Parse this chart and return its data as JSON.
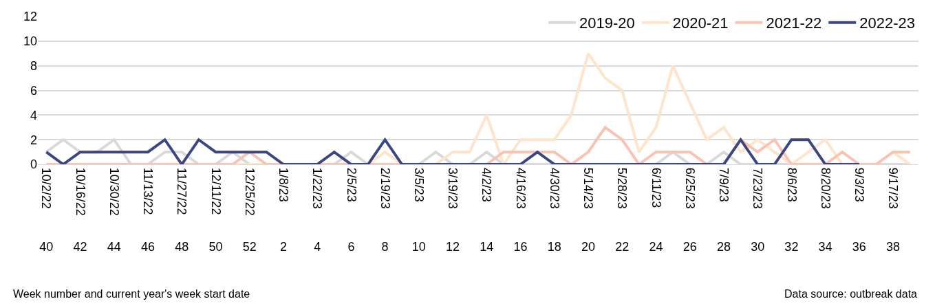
{
  "chart_data": {
    "type": "line",
    "x": [
      "2022-10-02",
      "2022-10-09",
      "2022-10-16",
      "2022-10-23",
      "2022-10-30",
      "2022-11-06",
      "2022-11-13",
      "2022-11-20",
      "2022-11-27",
      "2022-12-04",
      "2022-12-11",
      "2022-12-18",
      "2022-12-25",
      "2023-01-01",
      "2023-01-08",
      "2023-01-15",
      "2023-01-22",
      "2023-01-29",
      "2023-02-05",
      "2023-02-12",
      "2023-02-19",
      "2023-02-26",
      "2023-03-05",
      "2023-03-12",
      "2023-03-19",
      "2023-03-26",
      "2023-04-02",
      "2023-04-09",
      "2023-04-16",
      "2023-04-23",
      "2023-04-30",
      "2023-05-07",
      "2023-05-14",
      "2023-05-21",
      "2023-05-28",
      "2023-06-04",
      "2023-06-11",
      "2023-06-18",
      "2023-06-25",
      "2023-07-02",
      "2023-07-09",
      "2023-07-16",
      "2023-07-23",
      "2023-07-30",
      "2023-08-06",
      "2023-08-13",
      "2023-08-20",
      "2023-08-27",
      "2023-09-03",
      "2023-09-10",
      "2023-09-17",
      "2023-09-24"
    ],
    "xlim": [
      "2022-09-28T12:00",
      "2023-09-27T12:00"
    ],
    "xticks": [
      {
        "value": "2022-10-02",
        "label": "10/2/22"
      },
      {
        "value": "2022-10-16",
        "label": "10/16/22"
      },
      {
        "value": "2022-10-30",
        "label": "10/30/22"
      },
      {
        "value": "2022-11-13",
        "label": "11/13/22"
      },
      {
        "value": "2022-11-27",
        "label": "11/27/22"
      },
      {
        "value": "2022-12-11",
        "label": "12/11/22"
      },
      {
        "value": "2022-12-25",
        "label": "12/25/22"
      },
      {
        "value": "2023-01-08",
        "label": "1/8/23"
      },
      {
        "value": "2023-01-22",
        "label": "1/22/23"
      },
      {
        "value": "2023-02-05",
        "label": "2/5/23"
      },
      {
        "value": "2023-02-19",
        "label": "2/19/23"
      },
      {
        "value": "2023-03-05",
        "label": "3/5/23"
      },
      {
        "value": "2023-03-19",
        "label": "3/19/23"
      },
      {
        "value": "2023-04-02",
        "label": "4/2/23"
      },
      {
        "value": "2023-04-16",
        "label": "4/16/23"
      },
      {
        "value": "2023-04-30",
        "label": "4/30/23"
      },
      {
        "value": "2023-05-14",
        "label": "5/14/23"
      },
      {
        "value": "2023-05-28",
        "label": "5/28/23"
      },
      {
        "value": "2023-06-11",
        "label": "6/11/23"
      },
      {
        "value": "2023-06-25",
        "label": "6/25/23"
      },
      {
        "value": "2023-07-09",
        "label": "7/9/23"
      },
      {
        "value": "2023-07-23",
        "label": "7/23/23"
      },
      {
        "value": "2023-08-06",
        "label": "8/6/23"
      },
      {
        "value": "2023-08-20",
        "label": "8/20/23"
      },
      {
        "value": "2023-09-03",
        "label": "9/3/23"
      },
      {
        "value": "2023-09-17",
        "label": "9/17/23"
      }
    ],
    "x2lim": [
      "2022-09-28T12:00",
      "2023-09-27T12:00"
    ],
    "x2ticks": [
      {
        "value": "2022-10-02",
        "label": "40"
      },
      {
        "value": "2022-10-16",
        "label": "42"
      },
      {
        "value": "2022-10-30",
        "label": "44"
      },
      {
        "value": "2022-11-13",
        "label": "46"
      },
      {
        "value": "2022-11-27",
        "label": "48"
      },
      {
        "value": "2022-12-11",
        "label": "50"
      },
      {
        "value": "2022-12-25",
        "label": "52"
      },
      {
        "value": "2023-01-08",
        "label": "2"
      },
      {
        "value": "2023-01-22",
        "label": "4"
      },
      {
        "value": "2023-02-05",
        "label": "6"
      },
      {
        "value": "2023-02-19",
        "label": "8"
      },
      {
        "value": "2023-03-05",
        "label": "10"
      },
      {
        "value": "2023-03-19",
        "label": "12"
      },
      {
        "value": "2023-04-02",
        "label": "14"
      },
      {
        "value": "2023-04-16",
        "label": "16"
      },
      {
        "value": "2023-04-30",
        "label": "18"
      },
      {
        "value": "2023-05-14",
        "label": "20"
      },
      {
        "value": "2023-05-28",
        "label": "22"
      },
      {
        "value": "2023-06-11",
        "label": "24"
      },
      {
        "value": "2023-06-25",
        "label": "26"
      },
      {
        "value": "2023-07-09",
        "label": "28"
      },
      {
        "value": "2023-07-23",
        "label": "30"
      },
      {
        "value": "2023-08-06",
        "label": "32"
      },
      {
        "value": "2023-08-20",
        "label": "34"
      },
      {
        "value": "2023-09-03",
        "label": "36"
      },
      {
        "value": "2023-09-17",
        "label": "38"
      }
    ],
    "series": [
      {
        "name": "2019-20",
        "color": "#d9d9d9",
        "values": [
          1,
          2,
          1,
          1,
          2,
          0,
          0,
          1,
          1,
          0,
          0,
          1,
          0,
          0,
          0,
          0,
          0,
          0,
          1,
          0,
          0,
          0,
          0,
          1,
          0,
          0,
          1,
          0,
          0,
          0,
          0,
          0,
          0,
          0,
          0,
          0,
          0,
          1,
          0,
          0,
          1,
          0,
          0,
          0,
          0,
          0,
          0,
          0,
          0,
          0,
          0,
          0
        ]
      },
      {
        "name": "2020-21",
        "color": "#fde4ca",
        "values": [
          0,
          0,
          0,
          0,
          0,
          0,
          0,
          0,
          0,
          0,
          0,
          0,
          0,
          0,
          0,
          0,
          0,
          0,
          0,
          0,
          1,
          0,
          0,
          0,
          1,
          1,
          4,
          0,
          2,
          2,
          2,
          4,
          9,
          7,
          6,
          1,
          3,
          8,
          5,
          2,
          3,
          1,
          2,
          1,
          0,
          1,
          2,
          0,
          0,
          0,
          1,
          0
        ]
      },
      {
        "name": "2021-22",
        "color": "#f9c3b2",
        "values": [
          0,
          0,
          0,
          0,
          0,
          0,
          0,
          0,
          0,
          0,
          0,
          0,
          1,
          0,
          0,
          0,
          0,
          0,
          0,
          0,
          0,
          0,
          0,
          0,
          0,
          0,
          0,
          1,
          1,
          1,
          1,
          0,
          1,
          3,
          2,
          0,
          1,
          1,
          1,
          0,
          0,
          2,
          1,
          2,
          0,
          0,
          0,
          1,
          0,
          0,
          1,
          1
        ]
      },
      {
        "name": "2022-23",
        "color": "#3b4680",
        "values": [
          1,
          0,
          1,
          1,
          1,
          1,
          1,
          2,
          0,
          2,
          1,
          1,
          1,
          1,
          0,
          0,
          0,
          1,
          0,
          0,
          2,
          0,
          0,
          0,
          0,
          0,
          0,
          0,
          0,
          1,
          0,
          0,
          0,
          0,
          0,
          0,
          0,
          0,
          0,
          0,
          0,
          2,
          0,
          0,
          2,
          2,
          0,
          0,
          0,
          null,
          null,
          null
        ]
      }
    ],
    "ylim": [
      0,
      12
    ],
    "yticks": [
      0,
      2,
      4,
      6,
      8,
      10,
      12
    ],
    "grid": "y",
    "legend": "top right",
    "marker": "none",
    "line_style": "solid",
    "xlabel": "Week number and current year's week start date",
    "annotations": [
      "Data source: outbreak data"
    ]
  }
}
